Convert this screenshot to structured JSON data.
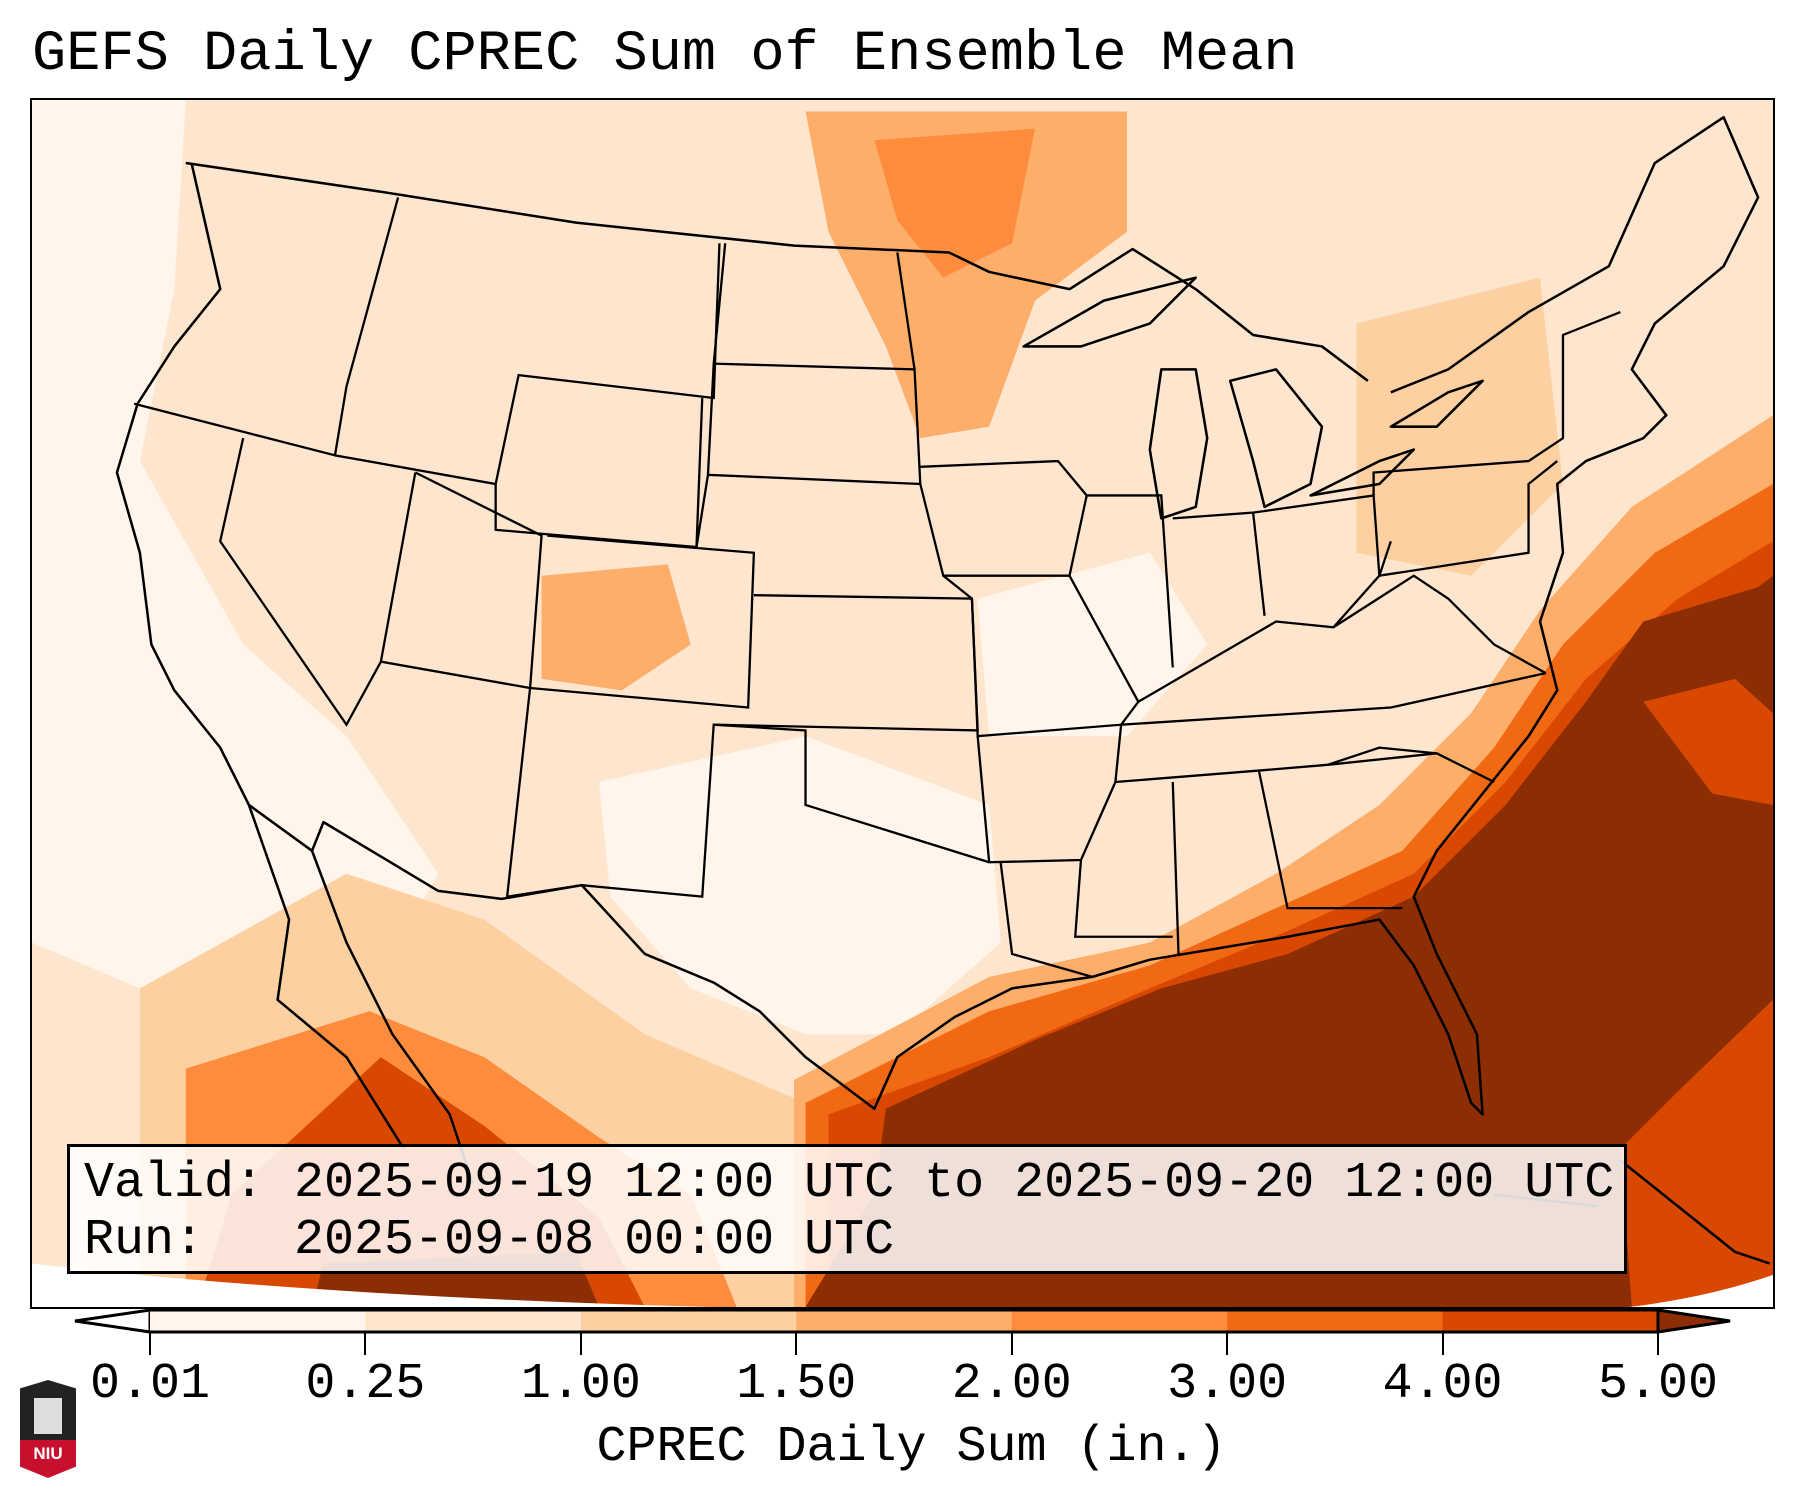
{
  "title": "GEFS Daily CPREC Sum of Ensemble Mean",
  "info": {
    "valid_line": "Valid: 2025-09-19 12:00 UTC to 2025-09-20 12:00 UTC",
    "run_line": "Run:   2025-09-08 00:00 UTC"
  },
  "colorbar": {
    "label": "CPREC Daily Sum (in.)",
    "ticks": [
      "0.01",
      "0.25",
      "1.00",
      "1.50",
      "2.00",
      "3.00",
      "4.00",
      "5.00"
    ],
    "colors": [
      "#fff5eb",
      "#fee6ce",
      "#fdd0a2",
      "#fdae6b",
      "#fd8d3c",
      "#f16913",
      "#d94801",
      "#8c2d04"
    ],
    "under_color": "#ffffff",
    "over_color": "#8c2d04"
  },
  "logo": {
    "text": "NIU"
  }
}
